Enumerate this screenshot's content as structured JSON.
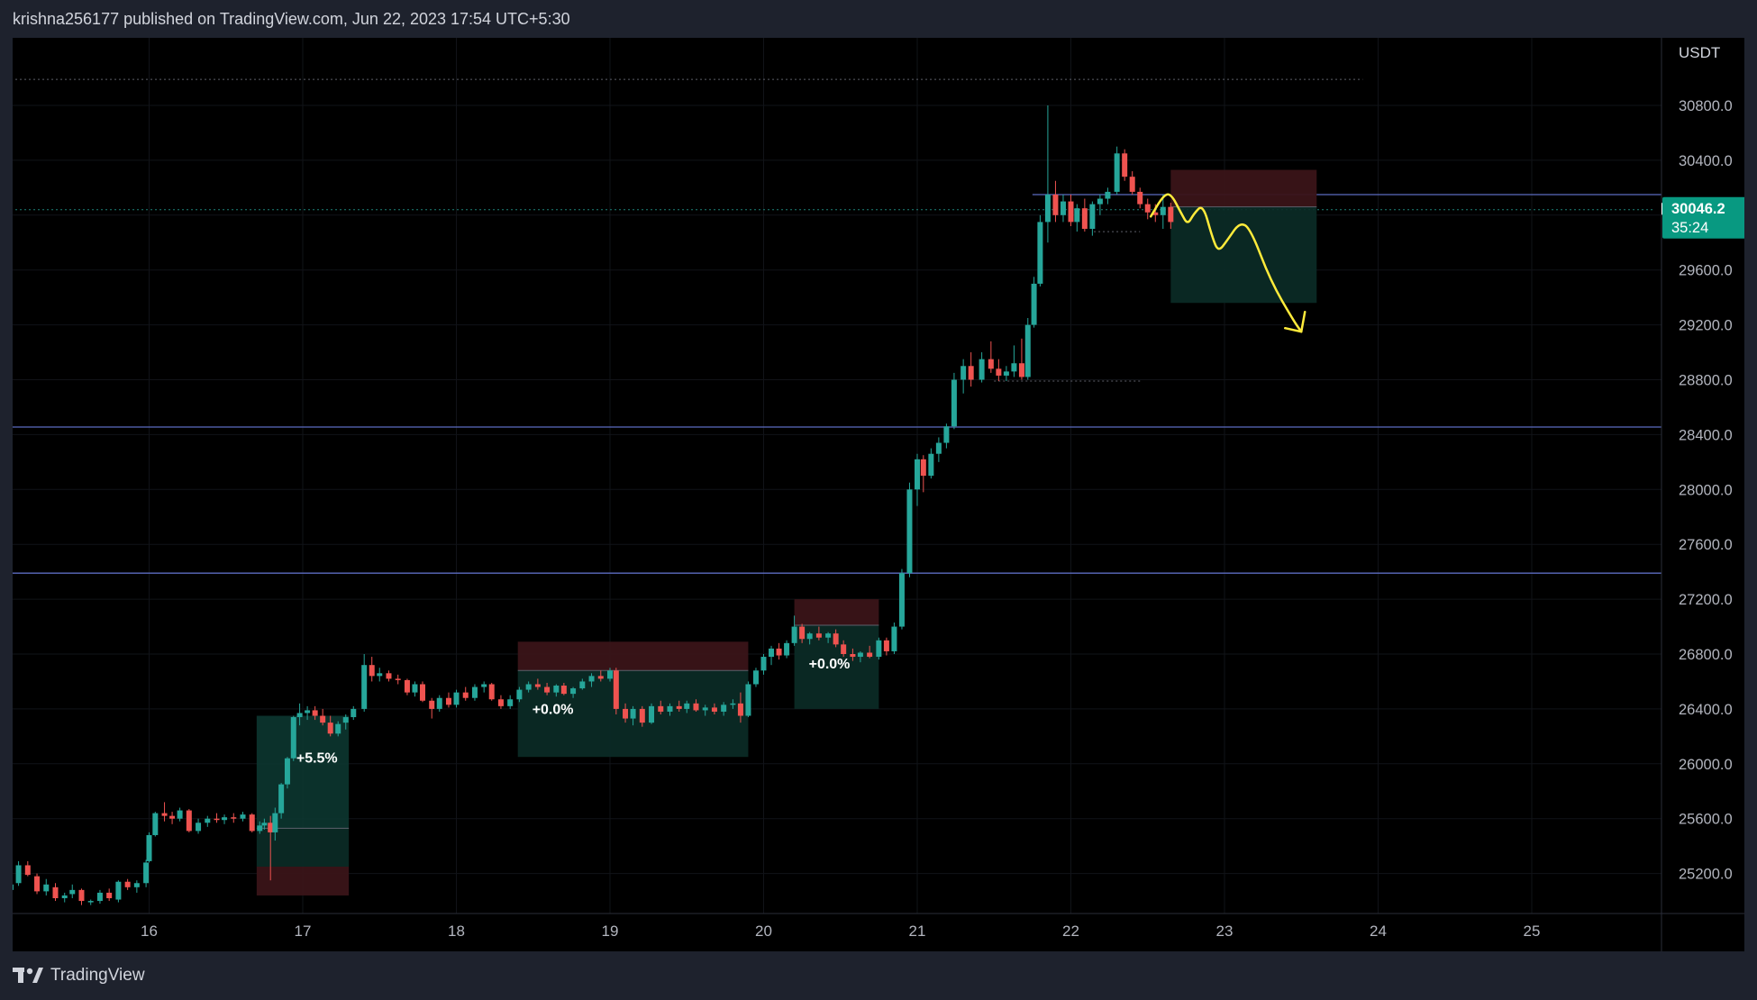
{
  "header": {
    "publish_info": "krishna256177 published on TradingView.com, Jun 22, 2023 17:54 UTC+5:30"
  },
  "footer": {
    "brand": "TradingView"
  },
  "colors": {
    "bull": "#26a69a",
    "bear": "#ef5350",
    "accent": "#089981",
    "line": "#5b6bc0",
    "drawing": "#ffeb3b"
  },
  "chart_data": {
    "type": "candlestick",
    "currency": "USDT",
    "price_axis": {
      "ticks": [
        "30800.0",
        "30400.0",
        "30000.0",
        "29600.0",
        "29200.0",
        "28800.0",
        "28400.0",
        "28000.0",
        "27600.0",
        "27200.0",
        "26800.0",
        "26400.0",
        "26000.0",
        "25600.0",
        "25200.0"
      ],
      "range": [
        25000,
        31400
      ]
    },
    "time_axis": {
      "ticks": [
        "16",
        "17",
        "18",
        "19",
        "20",
        "21",
        "22",
        "23",
        "24",
        "25"
      ],
      "day_range": [
        15.1,
        25.8
      ]
    },
    "last_price": {
      "value": "30046.2",
      "countdown": "35:24",
      "price": 30046.2
    },
    "horizontal_lines": [
      {
        "price": 30150,
        "start_day": 21.75
      },
      {
        "price": 28455,
        "start_day": 15.1
      },
      {
        "price": 27390,
        "start_day": 15.1
      }
    ],
    "dotted_lines": [
      {
        "price": 30990,
        "from_day": 15.1,
        "to_day": 23.9
      },
      {
        "price": 30040,
        "from_day": 15.1,
        "to_day": 25.8
      },
      {
        "price": 28790,
        "from_day": 21.5,
        "to_day": 22.45
      },
      {
        "price": 29880,
        "from_day": 22.15,
        "to_day": 22.45
      }
    ],
    "positions": [
      {
        "type": "long",
        "from_day": 16.7,
        "to_day": 17.3,
        "entry": 25530,
        "target": 26350,
        "stop": 25250,
        "stop_bottom": 25040,
        "label": "+5.5%"
      },
      {
        "type": "short",
        "from_day": 18.4,
        "to_day": 19.9,
        "entry": 26680,
        "target": 26050,
        "stop": 26890,
        "label": "+0.0%"
      },
      {
        "type": "short",
        "from_day": 20.2,
        "to_day": 20.75,
        "entry": 27010,
        "target": 26400,
        "stop": 27200,
        "label": "+0.0%"
      },
      {
        "type": "short",
        "from_day": 22.65,
        "to_day": 23.6,
        "entry": 30060,
        "target": 29360,
        "stop": 30330,
        "label": ""
      }
    ],
    "drawing_path": [
      [
        22.52,
        29990
      ],
      [
        22.6,
        30140
      ],
      [
        22.65,
        30160
      ],
      [
        22.72,
        30010
      ],
      [
        22.76,
        29930
      ],
      [
        22.8,
        30010
      ],
      [
        22.86,
        30080
      ],
      [
        22.92,
        29840
      ],
      [
        22.96,
        29730
      ],
      [
        23.02,
        29820
      ],
      [
        23.1,
        29950
      ],
      [
        23.17,
        29900
      ],
      [
        23.3,
        29520
      ],
      [
        23.45,
        29230
      ],
      [
        23.5,
        29150
      ]
    ],
    "candles": [
      [
        15.1,
        25080,
        25160,
        25020,
        25120
      ],
      [
        15.15,
        25130,
        25290,
        25110,
        25260
      ],
      [
        15.21,
        25260,
        25290,
        25180,
        25190
      ],
      [
        15.27,
        25180,
        25200,
        25050,
        25070
      ],
      [
        15.33,
        25070,
        25160,
        25040,
        25120
      ],
      [
        15.39,
        25100,
        25130,
        25000,
        25020
      ],
      [
        15.45,
        25020,
        25060,
        24990,
        25040
      ],
      [
        15.5,
        25050,
        25120,
        25020,
        25080
      ],
      [
        15.56,
        25080,
        25090,
        24970,
        25000
      ],
      [
        15.62,
        24990,
        25010,
        24970,
        25000
      ],
      [
        15.68,
        25000,
        25080,
        24980,
        25060
      ],
      [
        15.74,
        25060,
        25090,
        25000,
        25020
      ],
      [
        15.8,
        25010,
        25150,
        24990,
        25140
      ],
      [
        15.86,
        25140,
        25160,
        25080,
        25100
      ],
      [
        15.92,
        25100,
        25150,
        25060,
        25130
      ],
      [
        15.98,
        25130,
        25300,
        25100,
        25280
      ],
      [
        16.0,
        25290,
        25500,
        25280,
        25480
      ],
      [
        16.04,
        25480,
        25650,
        25470,
        25640
      ],
      [
        16.1,
        25640,
        25720,
        25580,
        25620
      ],
      [
        16.15,
        25620,
        25650,
        25560,
        25600
      ],
      [
        16.2,
        25600,
        25680,
        25580,
        25660
      ],
      [
        16.26,
        25660,
        25670,
        25500,
        25510
      ],
      [
        16.32,
        25510,
        25600,
        25490,
        25570
      ],
      [
        16.38,
        25570,
        25620,
        25540,
        25600
      ],
      [
        16.44,
        25600,
        25640,
        25570,
        25590
      ],
      [
        16.49,
        25590,
        25630,
        25560,
        25610
      ],
      [
        16.55,
        25610,
        25640,
        25570,
        25600
      ],
      [
        16.61,
        25600,
        25650,
        25580,
        25630
      ],
      [
        16.67,
        25630,
        25640,
        25500,
        25510
      ],
      [
        16.72,
        25510,
        25580,
        25490,
        25550
      ],
      [
        16.75,
        25550,
        25600,
        25520,
        25570
      ],
      [
        16.79,
        25570,
        25620,
        25150,
        25500
      ],
      [
        16.82,
        25500,
        25680,
        25440,
        25640
      ],
      [
        16.86,
        25640,
        25860,
        25600,
        25850
      ],
      [
        16.9,
        25850,
        26050,
        25820,
        26040
      ],
      [
        16.94,
        26040,
        26350,
        26020,
        26340
      ],
      [
        16.98,
        26340,
        26440,
        26280,
        26370
      ],
      [
        17.03,
        26370,
        26420,
        26320,
        26390
      ],
      [
        17.08,
        26390,
        26420,
        26320,
        26350
      ],
      [
        17.13,
        26350,
        26400,
        26280,
        26300
      ],
      [
        17.18,
        26300,
        26350,
        26200,
        26220
      ],
      [
        17.23,
        26220,
        26310,
        26200,
        26290
      ],
      [
        17.28,
        26300,
        26360,
        26250,
        26340
      ],
      [
        17.33,
        26340,
        26420,
        26320,
        26400
      ],
      [
        17.4,
        26400,
        26800,
        26380,
        26720
      ],
      [
        17.45,
        26720,
        26780,
        26600,
        26640
      ],
      [
        17.5,
        26640,
        26700,
        26600,
        26660
      ],
      [
        17.56,
        26660,
        26680,
        26600,
        26620
      ],
      [
        17.62,
        26620,
        26650,
        26580,
        26610
      ],
      [
        17.68,
        26610,
        26620,
        26500,
        26520
      ],
      [
        17.73,
        26520,
        26600,
        26490,
        26580
      ],
      [
        17.78,
        26580,
        26600,
        26450,
        26460
      ],
      [
        17.84,
        26460,
        26480,
        26330,
        26400
      ],
      [
        17.89,
        26400,
        26500,
        26380,
        26480
      ],
      [
        17.95,
        26480,
        26520,
        26410,
        26430
      ],
      [
        18.0,
        26430,
        26540,
        26410,
        26520
      ],
      [
        18.06,
        26520,
        26560,
        26460,
        26480
      ],
      [
        18.12,
        26480,
        26580,
        26460,
        26560
      ],
      [
        18.18,
        26560,
        26600,
        26520,
        26580
      ],
      [
        18.23,
        26580,
        26590,
        26460,
        26470
      ],
      [
        18.29,
        26470,
        26500,
        26400,
        26420
      ],
      [
        18.35,
        26420,
        26500,
        26400,
        26470
      ],
      [
        18.41,
        26470,
        26560,
        26450,
        26540
      ],
      [
        18.47,
        26540,
        26600,
        26520,
        26580
      ],
      [
        18.53,
        26580,
        26620,
        26540,
        26560
      ],
      [
        18.59,
        26560,
        26590,
        26500,
        26520
      ],
      [
        18.65,
        26520,
        26580,
        26490,
        26570
      ],
      [
        18.7,
        26570,
        26590,
        26500,
        26510
      ],
      [
        18.76,
        26510,
        26560,
        26480,
        26550
      ],
      [
        18.82,
        26550,
        26620,
        26540,
        26600
      ],
      [
        18.88,
        26600,
        26660,
        26560,
        26640
      ],
      [
        18.94,
        26640,
        26680,
        26600,
        26620
      ],
      [
        19.0,
        26620,
        26700,
        26600,
        26680
      ],
      [
        19.04,
        26680,
        26700,
        26360,
        26400
      ],
      [
        19.1,
        26400,
        26440,
        26300,
        26330
      ],
      [
        19.15,
        26330,
        26420,
        26280,
        26400
      ],
      [
        19.21,
        26400,
        26420,
        26270,
        26300
      ],
      [
        19.27,
        26300,
        26440,
        26290,
        26420
      ],
      [
        19.33,
        26420,
        26460,
        26360,
        26380
      ],
      [
        19.39,
        26380,
        26440,
        26350,
        26420
      ],
      [
        19.45,
        26420,
        26460,
        26380,
        26400
      ],
      [
        19.5,
        26400,
        26460,
        26370,
        26440
      ],
      [
        19.56,
        26440,
        26470,
        26380,
        26390
      ],
      [
        19.62,
        26390,
        26430,
        26350,
        26410
      ],
      [
        19.68,
        26410,
        26440,
        26360,
        26380
      ],
      [
        19.74,
        26380,
        26450,
        26350,
        26430
      ],
      [
        19.8,
        26430,
        26470,
        26400,
        26440
      ],
      [
        19.85,
        26440,
        26520,
        26300,
        26350
      ],
      [
        19.9,
        26350,
        26600,
        26340,
        26580
      ],
      [
        19.95,
        26580,
        26700,
        26560,
        26680
      ],
      [
        20.0,
        26680,
        26800,
        26650,
        26780
      ],
      [
        20.05,
        26780,
        26860,
        26720,
        26840
      ],
      [
        20.1,
        26840,
        26880,
        26760,
        26790
      ],
      [
        20.15,
        26790,
        26900,
        26770,
        26880
      ],
      [
        20.2,
        26880,
        27080,
        26860,
        27000
      ],
      [
        20.25,
        27000,
        27020,
        26880,
        26910
      ],
      [
        20.3,
        26910,
        26960,
        26870,
        26950
      ],
      [
        20.36,
        26950,
        27000,
        26900,
        26920
      ],
      [
        20.42,
        26920,
        26960,
        26880,
        26950
      ],
      [
        20.47,
        26950,
        26980,
        26850,
        26870
      ],
      [
        20.52,
        26870,
        26900,
        26780,
        26800
      ],
      [
        20.58,
        26800,
        26840,
        26750,
        26780
      ],
      [
        20.63,
        26780,
        26820,
        26740,
        26810
      ],
      [
        20.69,
        26810,
        26860,
        26770,
        26780
      ],
      [
        20.75,
        26780,
        26920,
        26760,
        26900
      ],
      [
        20.8,
        26900,
        26920,
        26790,
        26820
      ],
      [
        20.85,
        26820,
        27030,
        26800,
        27000
      ],
      [
        20.9,
        27000,
        27420,
        26980,
        27390
      ],
      [
        20.95,
        27390,
        28050,
        27360,
        28000
      ],
      [
        21.0,
        28000,
        28260,
        27880,
        28220
      ],
      [
        21.04,
        28220,
        28250,
        27980,
        28100
      ],
      [
        21.09,
        28100,
        28300,
        28080,
        28260
      ],
      [
        21.14,
        28260,
        28380,
        28200,
        28340
      ],
      [
        21.19,
        28340,
        28480,
        28300,
        28460
      ],
      [
        21.24,
        28460,
        28850,
        28440,
        28800
      ],
      [
        21.3,
        28800,
        28950,
        28700,
        28900
      ],
      [
        21.35,
        28900,
        29000,
        28750,
        28800
      ],
      [
        21.42,
        28800,
        29000,
        28780,
        28950
      ],
      [
        21.48,
        28950,
        29080,
        28850,
        28880
      ],
      [
        21.53,
        28880,
        28950,
        28790,
        28830
      ],
      [
        21.58,
        28830,
        28900,
        28790,
        28860
      ],
      [
        21.63,
        28860,
        29050,
        28820,
        28920
      ],
      [
        21.68,
        28920,
        29100,
        28800,
        28820
      ],
      [
        21.72,
        28820,
        29250,
        28800,
        29200
      ],
      [
        21.76,
        29200,
        29550,
        29180,
        29500
      ],
      [
        21.8,
        29500,
        30000,
        29480,
        29950
      ],
      [
        21.85,
        29950,
        30800,
        29800,
        30150
      ],
      [
        21.9,
        30150,
        30250,
        29950,
        30000
      ],
      [
        21.95,
        30000,
        30150,
        29950,
        30100
      ],
      [
        22.0,
        30100,
        30150,
        29920,
        29950
      ],
      [
        22.04,
        29950,
        30080,
        29880,
        30050
      ],
      [
        22.09,
        30050,
        30120,
        29880,
        29900
      ],
      [
        22.14,
        29900,
        30100,
        29850,
        30080
      ],
      [
        22.19,
        30080,
        30150,
        30000,
        30120
      ],
      [
        22.24,
        30120,
        30200,
        30080,
        30170
      ],
      [
        22.3,
        30170,
        30500,
        30150,
        30450
      ],
      [
        22.35,
        30450,
        30480,
        30250,
        30280
      ],
      [
        22.4,
        30280,
        30320,
        30150,
        30170
      ],
      [
        22.45,
        30170,
        30200,
        30050,
        30080
      ],
      [
        22.5,
        30080,
        30120,
        29970,
        30020
      ],
      [
        22.55,
        30020,
        30080,
        29950,
        30000
      ],
      [
        22.6,
        30000,
        30150,
        29900,
        30060
      ],
      [
        22.65,
        30060,
        30090,
        29900,
        29950
      ]
    ]
  }
}
